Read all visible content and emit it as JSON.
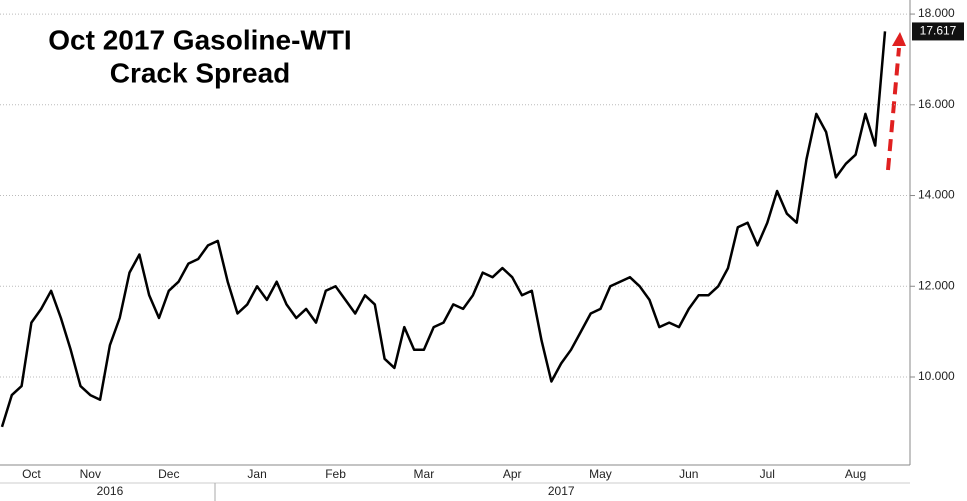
{
  "chart_data": {
    "type": "line",
    "title": [
      "Oct 2017 Gasoline-WTI",
      "Crack Spread"
    ],
    "color": "#000000",
    "grid": true,
    "ylim": [
      8.06,
      18.31
    ],
    "yticks": [
      {
        "value": 10,
        "label": "10.000"
      },
      {
        "value": 12,
        "label": "12.000"
      },
      {
        "value": 14,
        "label": "14.000"
      },
      {
        "value": 16,
        "label": "16.000"
      },
      {
        "value": 18,
        "label": "18.000"
      }
    ],
    "categories": [
      null,
      null,
      null,
      "Oct",
      null,
      null,
      null,
      null,
      null,
      "Nov",
      null,
      null,
      null,
      null,
      null,
      null,
      null,
      "Dec",
      null,
      null,
      null,
      null,
      null,
      null,
      null,
      null,
      "Jan",
      null,
      null,
      null,
      null,
      null,
      null,
      null,
      "Feb",
      null,
      null,
      null,
      null,
      null,
      null,
      null,
      null,
      "Mar",
      null,
      null,
      null,
      null,
      null,
      null,
      null,
      null,
      "Apr",
      null,
      null,
      null,
      null,
      null,
      null,
      null,
      null,
      "May",
      null,
      null,
      null,
      null,
      null,
      null,
      null,
      null,
      "Jun",
      null,
      null,
      null,
      null,
      null,
      null,
      null,
      "Jul",
      null,
      null,
      null,
      null,
      null,
      null,
      null,
      null,
      "Aug",
      null,
      null,
      null
    ],
    "year_categories": [
      null,
      null,
      null,
      null,
      null,
      null,
      null,
      null,
      null,
      null,
      null,
      "2016",
      null,
      null,
      null,
      null,
      null,
      null,
      null,
      null,
      null,
      null,
      null,
      null,
      null,
      null,
      null,
      null,
      null,
      null,
      null,
      null,
      null,
      null,
      null,
      null,
      null,
      null,
      null,
      null,
      null,
      null,
      null,
      null,
      null,
      null,
      null,
      null,
      null,
      null,
      null,
      null,
      null,
      null,
      null,
      null,
      null,
      "2017",
      null,
      null,
      null,
      null,
      null,
      null,
      null,
      null,
      null,
      null,
      null,
      null,
      null,
      null,
      null,
      null,
      null,
      null,
      null,
      null,
      null,
      null,
      null,
      null,
      null,
      null,
      null,
      null,
      null,
      null,
      null,
      null,
      null
    ],
    "values": [
      8.9,
      9.6,
      9.8,
      11.2,
      11.5,
      11.9,
      11.3,
      10.6,
      9.8,
      9.6,
      9.5,
      10.7,
      11.3,
      12.3,
      12.7,
      11.8,
      11.3,
      11.9,
      12.1,
      12.5,
      12.6,
      12.9,
      13.0,
      12.1,
      11.4,
      11.6,
      12.0,
      11.7,
      12.1,
      11.6,
      11.3,
      11.5,
      11.2,
      11.9,
      12.0,
      11.7,
      11.4,
      11.8,
      11.6,
      10.4,
      10.2,
      11.1,
      10.6,
      10.6,
      11.1,
      11.2,
      11.6,
      11.5,
      11.8,
      12.3,
      12.2,
      12.4,
      12.2,
      11.8,
      11.9,
      10.8,
      9.9,
      10.3,
      10.6,
      11.0,
      11.4,
      11.5,
      12.0,
      12.1,
      12.2,
      12.0,
      11.7,
      11.1,
      11.2,
      11.1,
      11.5,
      11.8,
      11.8,
      12.0,
      12.4,
      13.3,
      13.4,
      12.9,
      13.4,
      14.1,
      13.6,
      13.4,
      14.8,
      15.8,
      15.4,
      14.4,
      14.7,
      14.9,
      15.8,
      15.1,
      17.617
    ]
  }
}
